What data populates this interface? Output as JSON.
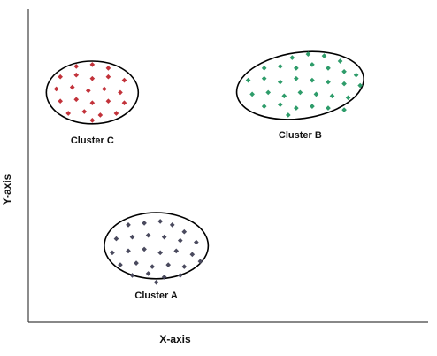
{
  "chart_data": {
    "type": "scatter",
    "title": "",
    "xlabel": "X-axis",
    "ylabel": "Y-axis",
    "grid": false,
    "legend": "none",
    "clusters": [
      {
        "name": "Cluster A",
        "color": "#4a4a5e",
        "center": [
          3.2,
          2.2
        ],
        "radius": [
          1.3,
          0.95
        ],
        "points": [
          [
            2.5,
            2.8
          ],
          [
            2.9,
            2.85
          ],
          [
            3.3,
            2.9
          ],
          [
            3.6,
            2.8
          ],
          [
            3.9,
            2.6
          ],
          [
            2.2,
            2.4
          ],
          [
            2.6,
            2.45
          ],
          [
            3.0,
            2.5
          ],
          [
            3.4,
            2.45
          ],
          [
            3.8,
            2.35
          ],
          [
            4.2,
            2.3
          ],
          [
            2.1,
            2.0
          ],
          [
            2.5,
            2.05
          ],
          [
            2.9,
            2.1
          ],
          [
            3.3,
            2.0
          ],
          [
            3.7,
            2.05
          ],
          [
            4.1,
            1.95
          ],
          [
            2.3,
            1.65
          ],
          [
            2.7,
            1.7
          ],
          [
            3.1,
            1.6
          ],
          [
            3.5,
            1.65
          ],
          [
            3.9,
            1.6
          ],
          [
            4.3,
            1.75
          ],
          [
            2.6,
            1.35
          ],
          [
            3.0,
            1.4
          ],
          [
            3.4,
            1.3
          ],
          [
            3.8,
            1.35
          ],
          [
            3.2,
            1.15
          ]
        ]
      },
      {
        "name": "Cluster B",
        "color": "#2e9c6a",
        "center": [
          6.8,
          6.8
        ],
        "radius": [
          1.6,
          0.95
        ],
        "points": [
          [
            6.6,
            7.6
          ],
          [
            7.0,
            7.7
          ],
          [
            7.4,
            7.65
          ],
          [
            7.8,
            7.5
          ],
          [
            5.9,
            7.3
          ],
          [
            6.3,
            7.35
          ],
          [
            6.7,
            7.3
          ],
          [
            7.1,
            7.4
          ],
          [
            7.5,
            7.3
          ],
          [
            7.9,
            7.2
          ],
          [
            8.2,
            7.1
          ],
          [
            5.5,
            6.95
          ],
          [
            5.9,
            7.0
          ],
          [
            6.3,
            6.9
          ],
          [
            6.7,
            7.0
          ],
          [
            7.1,
            6.95
          ],
          [
            7.5,
            6.9
          ],
          [
            7.9,
            6.85
          ],
          [
            8.3,
            6.8
          ],
          [
            5.6,
            6.55
          ],
          [
            6.0,
            6.6
          ],
          [
            6.4,
            6.5
          ],
          [
            6.8,
            6.6
          ],
          [
            7.2,
            6.55
          ],
          [
            7.6,
            6.5
          ],
          [
            8.0,
            6.45
          ],
          [
            5.9,
            6.2
          ],
          [
            6.3,
            6.25
          ],
          [
            6.7,
            6.15
          ],
          [
            7.1,
            6.2
          ],
          [
            7.5,
            6.15
          ],
          [
            7.9,
            6.1
          ],
          [
            6.5,
            5.95
          ]
        ]
      },
      {
        "name": "Cluster C",
        "color": "#c2323a",
        "center": [
          1.6,
          6.6
        ],
        "radius": [
          1.15,
          0.9
        ],
        "points": [
          [
            1.2,
            7.35
          ],
          [
            1.6,
            7.4
          ],
          [
            2.0,
            7.3
          ],
          [
            0.8,
            7.05
          ],
          [
            1.2,
            7.1
          ],
          [
            1.6,
            7.0
          ],
          [
            2.0,
            7.05
          ],
          [
            2.4,
            6.95
          ],
          [
            0.7,
            6.7
          ],
          [
            1.1,
            6.75
          ],
          [
            1.5,
            6.65
          ],
          [
            1.9,
            6.7
          ],
          [
            2.3,
            6.6
          ],
          [
            0.8,
            6.35
          ],
          [
            1.2,
            6.4
          ],
          [
            1.6,
            6.3
          ],
          [
            2.0,
            6.35
          ],
          [
            2.4,
            6.3
          ],
          [
            1.0,
            6.0
          ],
          [
            1.4,
            6.05
          ],
          [
            1.8,
            5.95
          ],
          [
            2.2,
            6.0
          ],
          [
            1.6,
            5.8
          ]
        ]
      }
    ],
    "xlim": [
      0,
      10
    ],
    "ylim": [
      0,
      9
    ]
  }
}
